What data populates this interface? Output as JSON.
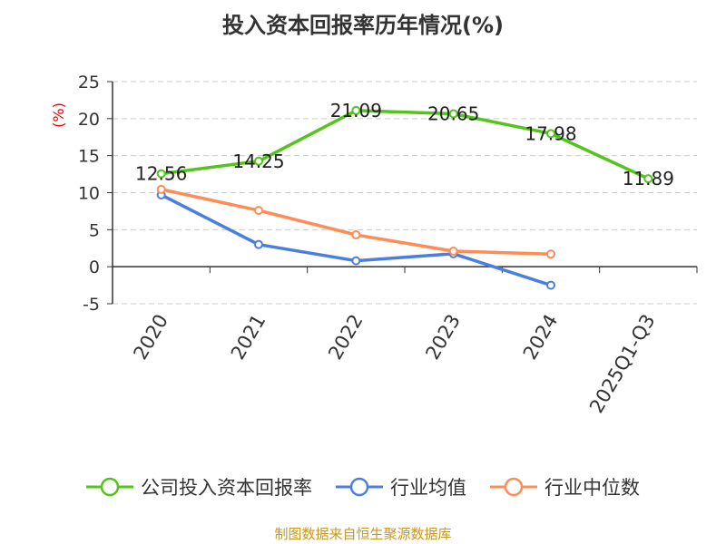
{
  "chart_data": {
    "type": "line",
    "title": "投入资本回报率历年情况(%)",
    "ylabel": "(%)",
    "xlabel": "",
    "ylim": [
      -5,
      25
    ],
    "yticks": [
      -5,
      0,
      5,
      10,
      15,
      20,
      25
    ],
    "grid": true,
    "legend_position": "bottom",
    "categories": [
      "2020",
      "2021",
      "2022",
      "2023",
      "2024",
      "2025Q1-Q3"
    ],
    "series": [
      {
        "name": "公司投入资本回报率",
        "color": "#52c41a",
        "values": [
          12.56,
          14.25,
          21.09,
          20.65,
          17.98,
          11.89
        ],
        "labels": [
          "12.56",
          "14.25",
          "21.09",
          "20.65",
          "17.98",
          "11.89"
        ]
      },
      {
        "name": "行业均值",
        "color": "#4a7fe0",
        "values": [
          9.7,
          3.0,
          0.8,
          1.75,
          -2.5,
          null
        ]
      },
      {
        "name": "行业中位数",
        "color": "#ff8c55",
        "values": [
          10.45,
          7.6,
          4.3,
          2.1,
          1.7,
          null
        ]
      }
    ]
  },
  "source": "制图数据来自恒生聚源数据库"
}
